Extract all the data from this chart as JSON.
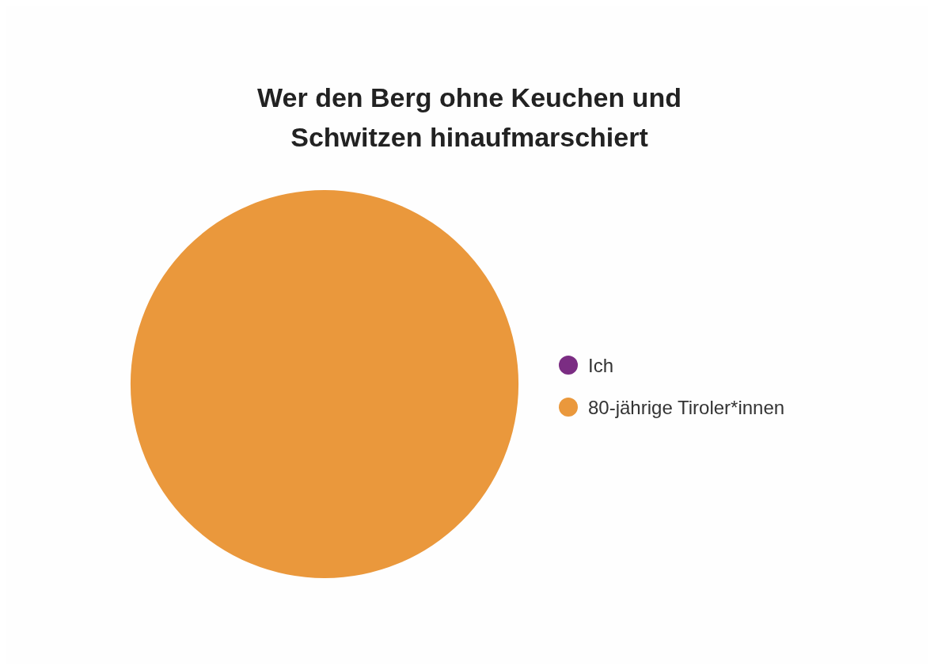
{
  "chart_data": {
    "type": "pie",
    "title": "Wer den Berg ohne Keuchen und Schwitzen hinaufmarschiert",
    "categories": [
      "Ich",
      "80-jährige Tiroler*innen"
    ],
    "values": [
      0,
      100
    ],
    "colors": [
      "#7b2d83",
      "#ea983c"
    ],
    "legend": "right"
  }
}
